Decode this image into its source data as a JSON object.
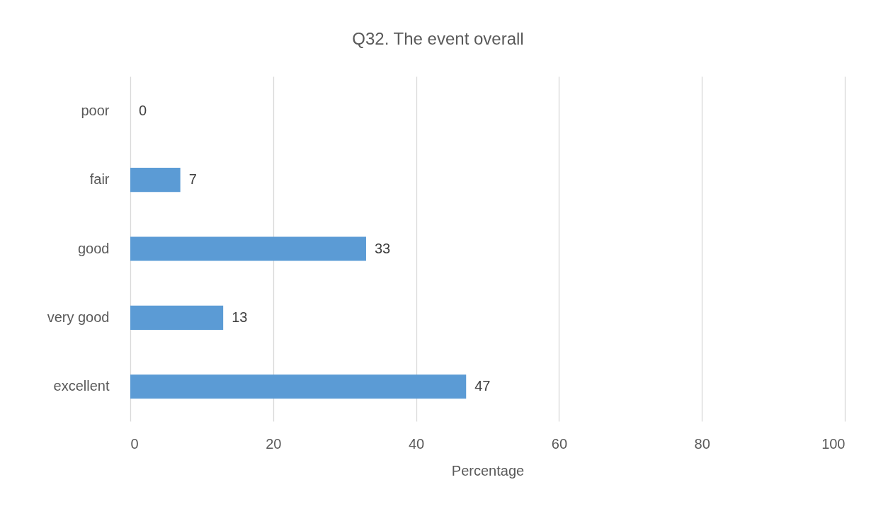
{
  "chart_data": {
    "type": "bar",
    "orientation": "horizontal",
    "title": "Q32. The event overall",
    "xlabel": "Percentage",
    "categories": [
      "poor",
      "fair",
      "good",
      "very good",
      "excellent"
    ],
    "values": [
      0,
      7,
      33,
      13,
      47
    ],
    "color": "#5b9bd5",
    "xlim": [
      0,
      100
    ],
    "xticks": [
      0,
      20,
      40,
      60,
      80,
      100
    ],
    "grid": "x",
    "data_labels": true
  }
}
